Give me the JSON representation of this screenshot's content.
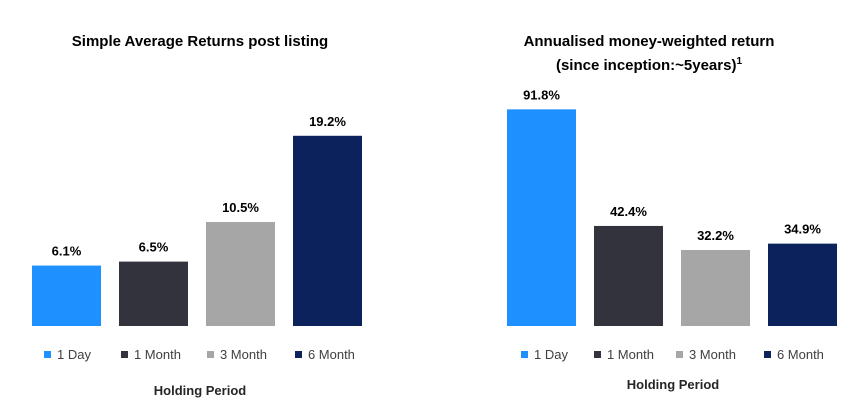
{
  "colors": {
    "1 Day": "#1e90ff",
    "1 Month": "#33333d",
    "3 Month": "#a6a6a6",
    "6 Month": "#0c225c"
  },
  "chart_data": [
    {
      "type": "bar",
      "title": "Simple Average Returns post listing",
      "categories": [
        "1 Day",
        "1 Month",
        "3 Month",
        "6 Month"
      ],
      "values": [
        6.1,
        6.5,
        10.5,
        19.2
      ],
      "data_labels": [
        "6.1%",
        "6.5%",
        "10.5%",
        "19.2%"
      ],
      "xlabel": "Holding Period",
      "ylabel": "",
      "ylim": [
        0,
        21.5
      ],
      "grid": false,
      "legend": "bottom"
    },
    {
      "type": "bar",
      "title": "Annualised money-weighted return",
      "subtitle": "(since inception:~5years)",
      "subtitle_sup": "1",
      "categories": [
        "1 Day",
        "1 Month",
        "3 Month",
        "6 Month"
      ],
      "values": [
        91.8,
        42.4,
        32.2,
        34.9
      ],
      "data_labels": [
        "91.8%",
        "42.4%",
        "32.2%",
        "34.9%"
      ],
      "xlabel": "Holding Period",
      "ylabel": "",
      "ylim": [
        0,
        100
      ],
      "grid": false,
      "legend": "bottom"
    }
  ]
}
